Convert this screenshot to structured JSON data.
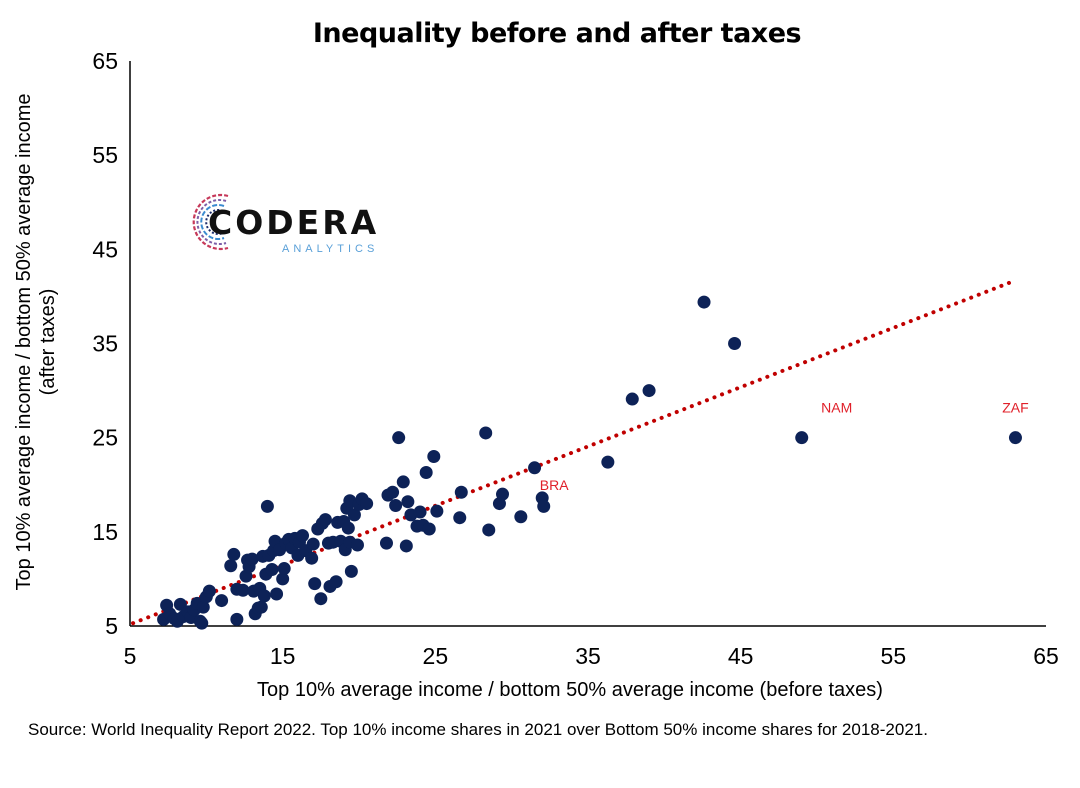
{
  "chart_data": {
    "type": "scatter",
    "title": "Inequality before and after taxes",
    "xlabel": "Top 10% average income / bottom 50% average income (before taxes)",
    "ylabel_line1": "Top 10% average income / bottom 50% average income",
    "ylabel_line2": "(after taxes)",
    "xlim": [
      5,
      65
    ],
    "ylim": [
      5,
      65
    ],
    "xticks": [
      5,
      15,
      25,
      35,
      45,
      55,
      65
    ],
    "yticks": [
      5,
      15,
      25,
      35,
      45,
      55,
      65
    ],
    "grid": false,
    "marker_color": "#0d2257",
    "trendline": {
      "style": "dotted",
      "color": "#c00000",
      "x": [
        5.2,
        63
      ],
      "y": [
        5.3,
        41.7
      ]
    },
    "annotations": [
      {
        "label": "NAM",
        "x": 49,
        "y": 25,
        "color": "#e0202a"
      },
      {
        "label": "ZAF",
        "x": 63,
        "y": 25,
        "color": "#e0202a"
      },
      {
        "label": "BRA",
        "x": 32,
        "y": 18.6,
        "color": "#e0202a"
      }
    ],
    "points": [
      [
        7.2,
        5.7
      ],
      [
        7.4,
        7.2
      ],
      [
        7.6,
        6.3
      ],
      [
        7.9,
        5.8
      ],
      [
        8.1,
        5.5
      ],
      [
        8.3,
        7.3
      ],
      [
        8.5,
        6.0
      ],
      [
        8.8,
        6.5
      ],
      [
        9.0,
        5.9
      ],
      [
        9.2,
        6.7
      ],
      [
        9.4,
        7.4
      ],
      [
        9.6,
        5.5
      ],
      [
        9.7,
        5.3
      ],
      [
        9.8,
        7.0
      ],
      [
        10.0,
        8.1
      ],
      [
        10.2,
        8.7
      ],
      [
        11.0,
        7.7
      ],
      [
        11.6,
        11.4
      ],
      [
        11.8,
        12.6
      ],
      [
        12.0,
        5.7
      ],
      [
        12.0,
        8.9
      ],
      [
        12.4,
        8.8
      ],
      [
        12.6,
        10.3
      ],
      [
        12.7,
        12.0
      ],
      [
        12.8,
        11.3
      ],
      [
        13.0,
        12.1
      ],
      [
        13.1,
        8.7
      ],
      [
        13.2,
        6.3
      ],
      [
        13.4,
        6.9
      ],
      [
        13.5,
        9.0
      ],
      [
        13.6,
        7.0
      ],
      [
        13.7,
        12.4
      ],
      [
        13.8,
        8.2
      ],
      [
        13.9,
        10.5
      ],
      [
        14.0,
        17.7
      ],
      [
        14.1,
        12.5
      ],
      [
        14.3,
        11.0
      ],
      [
        14.4,
        13.0
      ],
      [
        14.5,
        14.0
      ],
      [
        14.6,
        8.4
      ],
      [
        14.8,
        13.1
      ],
      [
        15.0,
        10.0
      ],
      [
        15.1,
        11.1
      ],
      [
        15.2,
        13.8
      ],
      [
        15.4,
        14.2
      ],
      [
        15.6,
        13.3
      ],
      [
        15.8,
        14.3
      ],
      [
        16.0,
        12.5
      ],
      [
        16.1,
        13.9
      ],
      [
        16.3,
        14.6
      ],
      [
        16.5,
        13.0
      ],
      [
        16.9,
        12.2
      ],
      [
        17.0,
        13.7
      ],
      [
        17.1,
        9.5
      ],
      [
        17.3,
        15.3
      ],
      [
        17.5,
        7.9
      ],
      [
        17.6,
        15.9
      ],
      [
        17.8,
        16.3
      ],
      [
        18.0,
        13.8
      ],
      [
        18.1,
        9.2
      ],
      [
        18.3,
        13.9
      ],
      [
        18.5,
        9.7
      ],
      [
        18.6,
        16.0
      ],
      [
        18.8,
        14.0
      ],
      [
        19.0,
        16.1
      ],
      [
        19.1,
        13.1
      ],
      [
        19.2,
        17.5
      ],
      [
        19.3,
        15.4
      ],
      [
        19.4,
        13.9
      ],
      [
        19.4,
        18.3
      ],
      [
        19.5,
        10.8
      ],
      [
        19.7,
        16.8
      ],
      [
        19.9,
        13.6
      ],
      [
        20.0,
        17.9
      ],
      [
        20.2,
        18.5
      ],
      [
        20.5,
        18.0
      ],
      [
        21.8,
        13.8
      ],
      [
        21.9,
        18.9
      ],
      [
        22.2,
        19.2
      ],
      [
        22.4,
        17.8
      ],
      [
        22.6,
        25.0
      ],
      [
        22.9,
        20.3
      ],
      [
        23.1,
        13.5
      ],
      [
        23.2,
        18.2
      ],
      [
        23.4,
        16.8
      ],
      [
        23.8,
        15.6
      ],
      [
        24.0,
        17.1
      ],
      [
        24.2,
        15.7
      ],
      [
        24.4,
        21.3
      ],
      [
        24.6,
        15.3
      ],
      [
        24.9,
        23.0
      ],
      [
        25.1,
        17.2
      ],
      [
        26.6,
        16.5
      ],
      [
        26.7,
        19.2
      ],
      [
        28.3,
        25.5
      ],
      [
        28.5,
        15.2
      ],
      [
        29.2,
        18.0
      ],
      [
        29.4,
        19.0
      ],
      [
        30.6,
        16.6
      ],
      [
        31.5,
        21.8
      ],
      [
        32.0,
        18.6
      ],
      [
        32.1,
        17.7
      ],
      [
        36.3,
        22.4
      ],
      [
        37.9,
        29.1
      ],
      [
        39.0,
        30.0
      ],
      [
        42.6,
        39.4
      ],
      [
        44.6,
        35.0
      ],
      [
        49.0,
        25.0
      ],
      [
        63.0,
        25.0
      ]
    ]
  },
  "source_text": "Source: World Inequality Report 2022. Top 10% income shares in 2021 over Bottom 50% income shares for 2018-2021.",
  "logo": {
    "name": "CODERA",
    "sub": "ANALYTICS"
  }
}
